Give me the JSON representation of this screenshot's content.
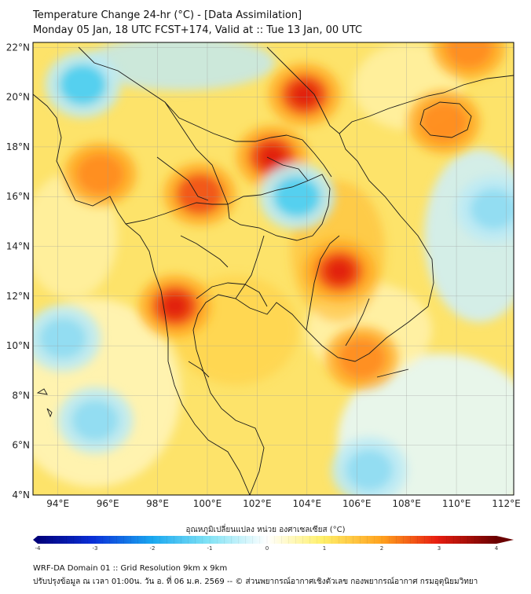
{
  "title": {
    "line1": "Temperature Change 24-hr (°C) - [Data Assimilation]",
    "line2": "Monday 05 Jan, 18 UTC FCST+174, Valid at :: Tue 13 Jan, 00 UTC"
  },
  "map": {
    "lat_labels": [
      "22°N",
      "20°N",
      "18°N",
      "16°N",
      "14°N",
      "12°N",
      "10°N",
      "8°N",
      "6°N",
      "4°N"
    ],
    "lon_labels": [
      "94°E",
      "96°E",
      "98°E",
      "100°E",
      "102°E",
      "104°E",
      "106°E",
      "108°E",
      "110°E",
      "112°E"
    ],
    "lat_range": [
      4,
      22.2
    ],
    "lon_range": [
      93,
      112.3
    ],
    "warm_spots": [
      {
        "lat": 17.6,
        "lon": 102.6,
        "level": 3.2
      },
      {
        "lat": 20.1,
        "lon": 103.9,
        "level": 3.0
      },
      {
        "lat": 13.0,
        "lon": 105.3,
        "level": 3.0
      },
      {
        "lat": 11.6,
        "lon": 98.7,
        "level": 3.0
      },
      {
        "lat": 16.1,
        "lon": 99.7,
        "level": 2.8
      },
      {
        "lat": 16.9,
        "lon": 95.7,
        "level": 2.2
      },
      {
        "lat": 9.5,
        "lon": 106.2,
        "level": 2.0
      },
      {
        "lat": 22.0,
        "lon": 110.5,
        "level": 2.2
      },
      {
        "lat": 19.0,
        "lon": 109.5,
        "level": 1.8
      }
    ],
    "cool_spots": [
      {
        "lat": 16.0,
        "lon": 103.6,
        "level": -1.6
      },
      {
        "lat": 20.5,
        "lon": 95.0,
        "level": -1.2
      },
      {
        "lat": 10.3,
        "lon": 94.2,
        "level": -1.0
      },
      {
        "lat": 7.0,
        "lon": 95.5,
        "level": -1.0
      },
      {
        "lat": 15.5,
        "lon": 111.5,
        "level": -0.9
      },
      {
        "lat": 5.0,
        "lon": 106.5,
        "level": -0.6
      }
    ]
  },
  "colorbar": {
    "label": "อุณหภูมิเปลี่ยนแปลง หน่วย องศาเซลเซียส (°C)",
    "ticks": [
      "-4",
      "-3",
      "-2",
      "-1",
      "0",
      "1",
      "2",
      "3",
      "4"
    ],
    "range": [
      -4,
      4
    ]
  },
  "footer": {
    "line1": "WRF-DA Domain 01 :: Grid Resolution 9km x 9km",
    "line2": "ปรับปรุงข้อมูล ณ เวลา 01:00น. วัน อ. ที่ 06 ม.ค. 2569 -- © ส่วนพยากรณ์อากาศเชิงตัวเลข กองพยากรณ์อากาศ กรมอุตุนิยมวิทยา"
  }
}
